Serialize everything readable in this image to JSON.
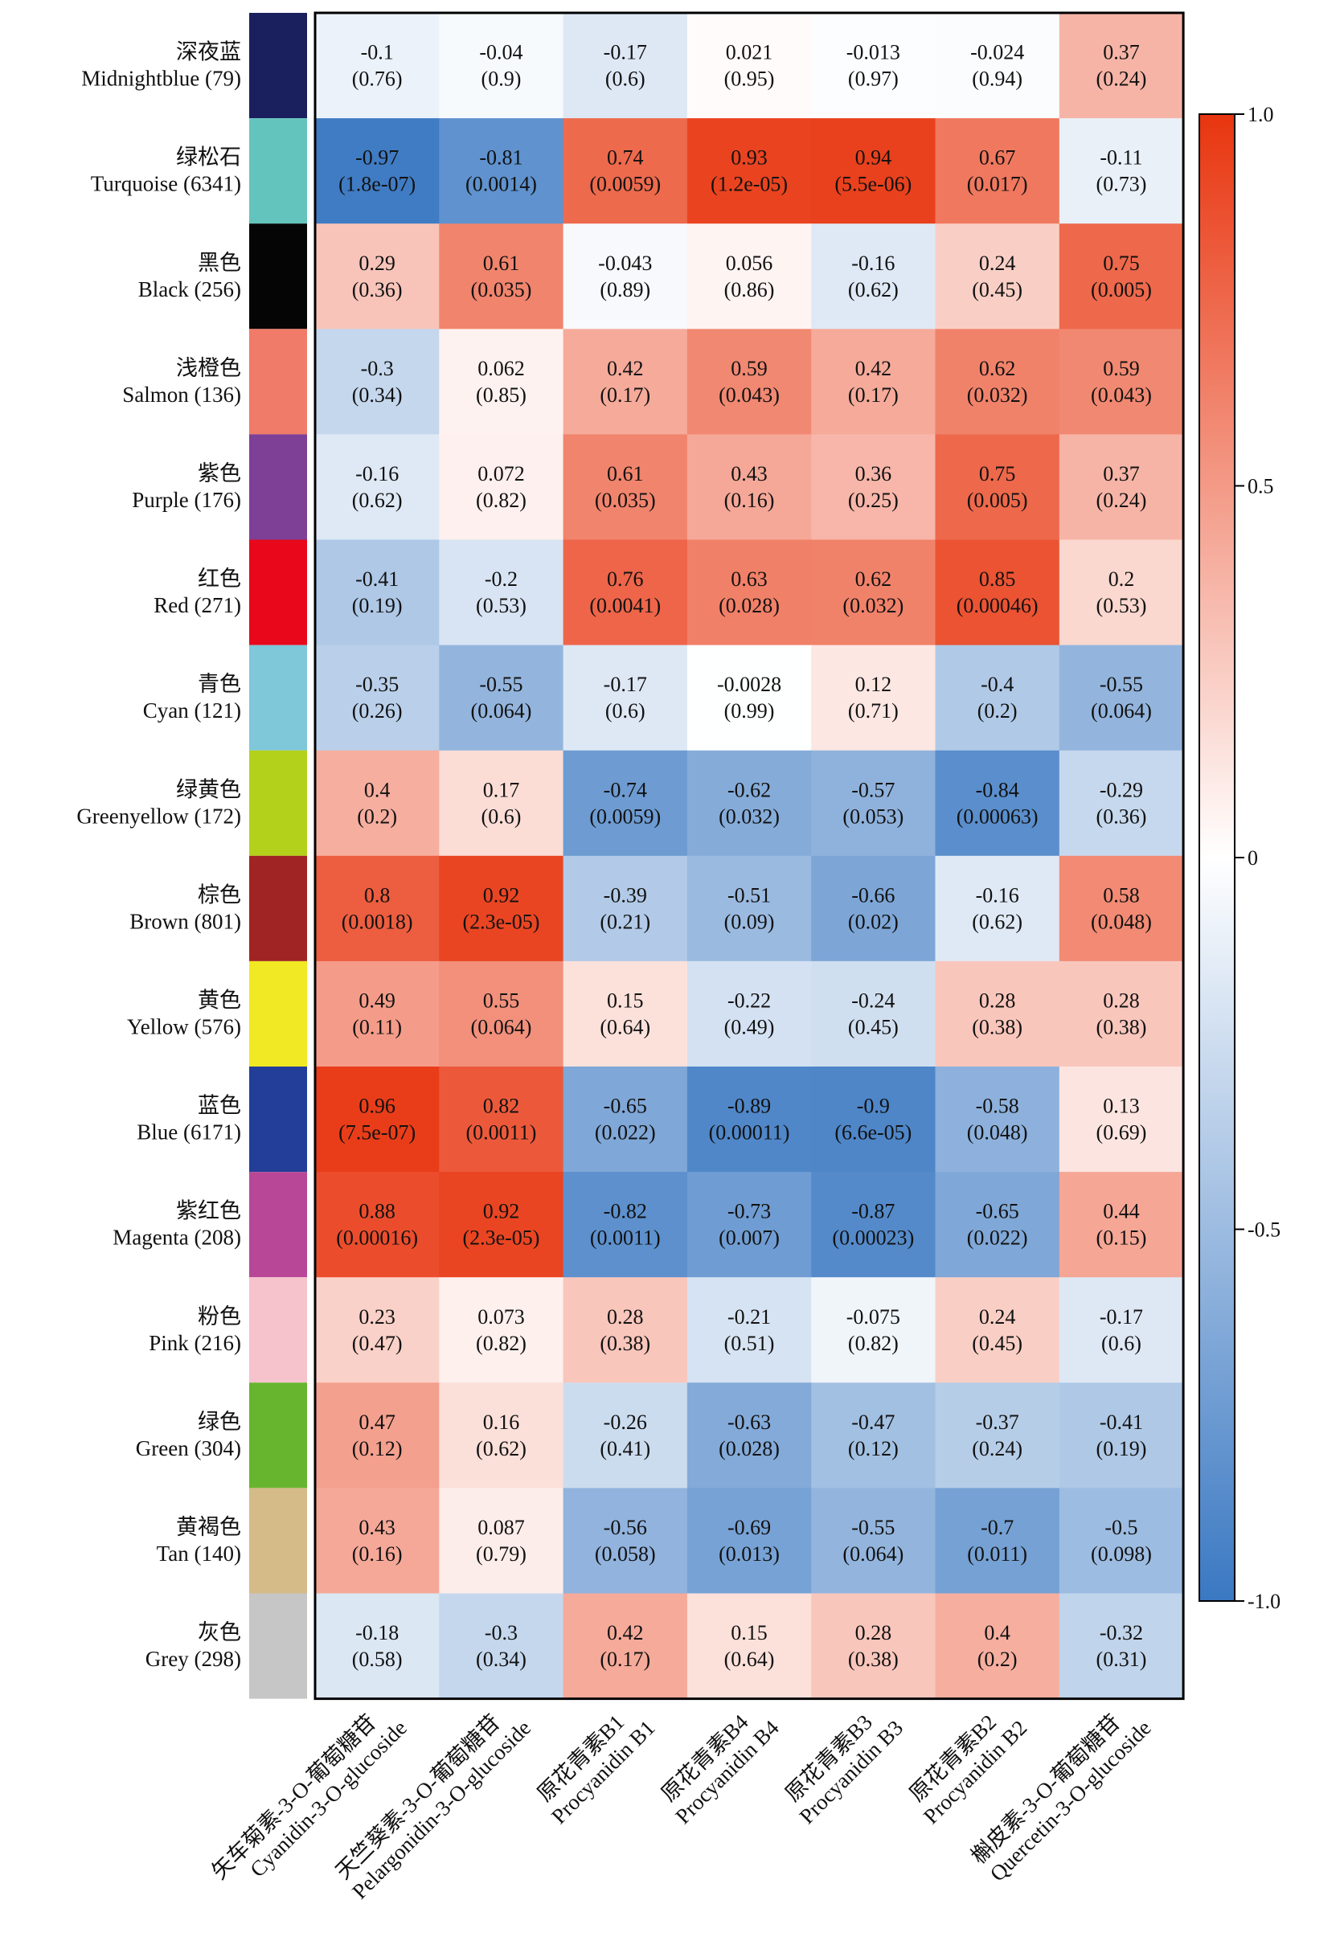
{
  "chart_data": {
    "type": "heatmap",
    "rows": [
      {
        "cn": "深夜蓝",
        "en": "Midnightblue (79)",
        "color": "#1a1f5e"
      },
      {
        "cn": "绿松石",
        "en": "Turquoise (6341)",
        "color": "#63c4bd"
      },
      {
        "cn": "黑色",
        "en": "Black (256)",
        "color": "#050505"
      },
      {
        "cn": "浅橙色",
        "en": "Salmon (136)",
        "color": "#ef7b68"
      },
      {
        "cn": "紫色",
        "en": "Purple (176)",
        "color": "#7e3f96"
      },
      {
        "cn": "红色",
        "en": "Red (271)",
        "color": "#e8071b"
      },
      {
        "cn": "青色",
        "en": "Cyan (121)",
        "color": "#7ec8d9"
      },
      {
        "cn": "绿黄色",
        "en": "Greenyellow (172)",
        "color": "#b3d11a"
      },
      {
        "cn": "棕色",
        "en": "Brown (801)",
        "color": "#a02424"
      },
      {
        "cn": "黄色",
        "en": "Yellow (576)",
        "color": "#f0e923"
      },
      {
        "cn": "蓝色",
        "en": "Blue (6171)",
        "color": "#233e98"
      },
      {
        "cn": "紫红色",
        "en": "Magenta (208)",
        "color": "#b84897"
      },
      {
        "cn": "粉色",
        "en": "Pink (216)",
        "color": "#f6c2cb"
      },
      {
        "cn": "绿色",
        "en": "Green (304)",
        "color": "#67b52f"
      },
      {
        "cn": "黄褐色",
        "en": "Tan (140)",
        "color": "#d4bb88"
      },
      {
        "cn": "灰色",
        "en": "Grey (298)",
        "color": "#c6c6c6"
      }
    ],
    "columns": [
      {
        "cn": "矢车菊素-3-O-葡萄糖苷",
        "en": "Cyanidin-3-O-glucoside"
      },
      {
        "cn": "天竺葵素-3-O-葡萄糖苷",
        "en": "Pelargonidin-3-O-glucoside"
      },
      {
        "cn": "原花青素B1",
        "en": "Procyanidin B1"
      },
      {
        "cn": "原花青素B4",
        "en": "Procyanidin B4"
      },
      {
        "cn": "原花青素B3",
        "en": "Procyanidin B3"
      },
      {
        "cn": "原花青素B2",
        "en": "Procyanidin B2"
      },
      {
        "cn": "槲皮素-3-O-葡萄糖苷",
        "en": "Quercetin-3-O-glucoside"
      }
    ],
    "values": [
      [
        -0.1,
        -0.04,
        -0.17,
        0.021,
        -0.013,
        -0.024,
        0.37
      ],
      [
        -0.97,
        -0.81,
        0.74,
        0.93,
        0.94,
        0.67,
        -0.11
      ],
      [
        0.29,
        0.61,
        -0.043,
        0.056,
        -0.16,
        0.24,
        0.75
      ],
      [
        -0.3,
        0.062,
        0.42,
        0.59,
        0.42,
        0.62,
        0.59
      ],
      [
        -0.16,
        0.072,
        0.61,
        0.43,
        0.36,
        0.75,
        0.37
      ],
      [
        -0.41,
        -0.2,
        0.76,
        0.63,
        0.62,
        0.85,
        0.2
      ],
      [
        -0.35,
        -0.55,
        -0.17,
        -0.0028,
        0.12,
        -0.4,
        -0.55
      ],
      [
        0.4,
        0.17,
        -0.74,
        -0.62,
        -0.57,
        -0.84,
        -0.29
      ],
      [
        0.8,
        0.92,
        -0.39,
        -0.51,
        -0.66,
        -0.16,
        0.58
      ],
      [
        0.49,
        0.55,
        0.15,
        -0.22,
        -0.24,
        0.28,
        0.28
      ],
      [
        0.96,
        0.82,
        -0.65,
        -0.89,
        -0.9,
        -0.58,
        0.13
      ],
      [
        0.88,
        0.92,
        -0.82,
        -0.73,
        -0.87,
        -0.65,
        0.44
      ],
      [
        0.23,
        0.073,
        0.28,
        -0.21,
        -0.075,
        0.24,
        -0.17
      ],
      [
        0.47,
        0.16,
        -0.26,
        -0.63,
        -0.47,
        -0.37,
        -0.41
      ],
      [
        0.43,
        0.087,
        -0.56,
        -0.69,
        -0.55,
        -0.7,
        -0.5
      ],
      [
        -0.18,
        -0.3,
        0.42,
        0.15,
        0.28,
        0.4,
        -0.32
      ]
    ],
    "labels": [
      [
        "-0.1",
        "-0.04",
        "-0.17",
        "0.021",
        "-0.013",
        "-0.024",
        "0.37"
      ],
      [
        "-0.97",
        "-0.81",
        "0.74",
        "0.93",
        "0.94",
        "0.67",
        "-0.11"
      ],
      [
        "0.29",
        "0.61",
        "-0.043",
        "0.056",
        "-0.16",
        "0.24",
        "0.75"
      ],
      [
        "-0.3",
        "0.062",
        "0.42",
        "0.59",
        "0.42",
        "0.62",
        "0.59"
      ],
      [
        "-0.16",
        "0.072",
        "0.61",
        "0.43",
        "0.36",
        "0.75",
        "0.37"
      ],
      [
        "-0.41",
        "-0.2",
        "0.76",
        "0.63",
        "0.62",
        "0.85",
        "0.2"
      ],
      [
        "-0.35",
        "-0.55",
        "-0.17",
        "-0.0028",
        "0.12",
        "-0.4",
        "-0.55"
      ],
      [
        "0.4",
        "0.17",
        "-0.74",
        "-0.62",
        "-0.57",
        "-0.84",
        "-0.29"
      ],
      [
        "0.8",
        "0.92",
        "-0.39",
        "-0.51",
        "-0.66",
        "-0.16",
        "0.58"
      ],
      [
        "0.49",
        "0.55",
        "0.15",
        "-0.22",
        "-0.24",
        "0.28",
        "0.28"
      ],
      [
        "0.96",
        "0.82",
        "-0.65",
        "-0.89",
        "-0.9",
        "-0.58",
        "0.13"
      ],
      [
        "0.88",
        "0.92",
        "-0.82",
        "-0.73",
        "-0.87",
        "-0.65",
        "0.44"
      ],
      [
        "0.23",
        "0.073",
        "0.28",
        "-0.21",
        "-0.075",
        "0.24",
        "-0.17"
      ],
      [
        "0.47",
        "0.16",
        "-0.26",
        "-0.63",
        "-0.47",
        "-0.37",
        "-0.41"
      ],
      [
        "0.43",
        "0.087",
        "-0.56",
        "-0.69",
        "-0.55",
        "-0.7",
        "-0.5"
      ],
      [
        "-0.18",
        "-0.3",
        "0.42",
        "0.15",
        "0.28",
        "0.4",
        "-0.32"
      ]
    ],
    "pvalues": [
      [
        "(0.76)",
        "(0.9)",
        "(0.6)",
        "(0.95)",
        "(0.97)",
        "(0.94)",
        "(0.24)"
      ],
      [
        "(1.8e-07)",
        "(0.0014)",
        "(0.0059)",
        "(1.2e-05)",
        "(5.5e-06)",
        "(0.017)",
        "(0.73)"
      ],
      [
        "(0.36)",
        "(0.035)",
        "(0.89)",
        "(0.86)",
        "(0.62)",
        "(0.45)",
        "(0.005)"
      ],
      [
        "(0.34)",
        "(0.85)",
        "(0.17)",
        "(0.043)",
        "(0.17)",
        "(0.032)",
        "(0.043)"
      ],
      [
        "(0.62)",
        "(0.82)",
        "(0.035)",
        "(0.16)",
        "(0.25)",
        "(0.005)",
        "(0.24)"
      ],
      [
        "(0.19)",
        "(0.53)",
        "(0.0041)",
        "(0.028)",
        "(0.032)",
        "(0.00046)",
        "(0.53)"
      ],
      [
        "(0.26)",
        "(0.064)",
        "(0.6)",
        "(0.99)",
        "(0.71)",
        "(0.2)",
        "(0.064)"
      ],
      [
        "(0.2)",
        "(0.6)",
        "(0.0059)",
        "(0.032)",
        "(0.053)",
        "(0.00063)",
        "(0.36)"
      ],
      [
        "(0.0018)",
        "(2.3e-05)",
        "(0.21)",
        "(0.09)",
        "(0.02)",
        "(0.62)",
        "(0.048)"
      ],
      [
        "(0.11)",
        "(0.064)",
        "(0.64)",
        "(0.49)",
        "(0.45)",
        "(0.38)",
        "(0.38)"
      ],
      [
        "(7.5e-07)",
        "(0.0011)",
        "(0.022)",
        "(0.00011)",
        "(6.6e-05)",
        "(0.048)",
        "(0.69)"
      ],
      [
        "(0.00016)",
        "(2.3e-05)",
        "(0.0011)",
        "(0.007)",
        "(0.00023)",
        "(0.022)",
        "(0.15)"
      ],
      [
        "(0.47)",
        "(0.82)",
        "(0.38)",
        "(0.51)",
        "(0.82)",
        "(0.45)",
        "(0.6)"
      ],
      [
        "(0.12)",
        "(0.62)",
        "(0.41)",
        "(0.028)",
        "(0.12)",
        "(0.24)",
        "(0.19)"
      ],
      [
        "(0.16)",
        "(0.79)",
        "(0.058)",
        "(0.013)",
        "(0.064)",
        "(0.011)",
        "(0.098)"
      ],
      [
        "(0.58)",
        "(0.34)",
        "(0.17)",
        "(0.64)",
        "(0.38)",
        "(0.2)",
        "(0.31)"
      ]
    ],
    "color_scale": {
      "min": -1.0,
      "max": 1.0,
      "low_color": "#3a78c2",
      "mid_color": "#ffffff",
      "high_color": "#e8350f",
      "ticks": [
        1.0,
        0.5,
        0,
        -0.5,
        -1.0
      ],
      "tick_labels": [
        "1.0",
        "0.5",
        "0",
        "-0.5",
        "-1.0"
      ],
      "legend_position": "right"
    },
    "grid": false
  }
}
